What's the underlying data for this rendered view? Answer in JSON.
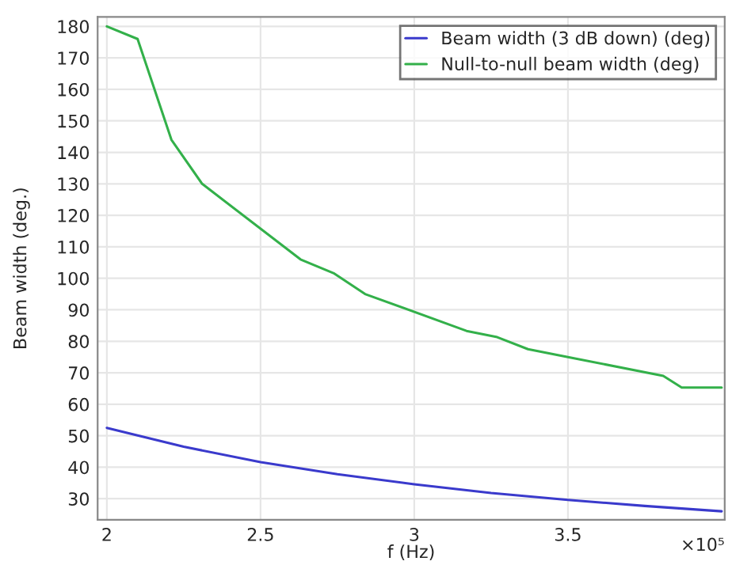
{
  "chart_data": {
    "type": "line",
    "xlabel": "f (Hz)",
    "ylabel": "Beam width (deg.)",
    "x": [
      2.0,
      2.25,
      2.5,
      2.75,
      3.0,
      3.25,
      3.5,
      3.75,
      4.0
    ],
    "series": [
      {
        "name": "Beam width (3 dB down) (deg)",
        "color": "#3a3acc",
        "values": [
          52.5,
          46.5,
          41.6,
          37.8,
          34.6,
          31.8,
          29.6,
          27.7,
          26
        ]
      },
      {
        "name": "Null-to-null beam width (deg)",
        "color": "#33b04a",
        "x": [
          2.0,
          2.1,
          2.21,
          2.31,
          2.63,
          2.74,
          2.84,
          3.17,
          3.27,
          3.37,
          3.5,
          3.81,
          3.87,
          4.0
        ],
        "values": [
          180,
          176,
          144,
          130,
          106,
          101.5,
          95,
          83.3,
          81.3,
          77.5,
          75,
          69,
          65.3,
          65.3
        ]
      }
    ],
    "xlim": [
      1.97,
      4.01
    ],
    "ylim": [
      23.3,
      183
    ],
    "xticks": [
      2,
      2.5,
      3,
      3.5
    ],
    "yticks": [
      30,
      40,
      50,
      60,
      70,
      80,
      90,
      100,
      110,
      120,
      130,
      140,
      150,
      160,
      170,
      180
    ],
    "annotations": [
      "×10⁵"
    ],
    "grid": true,
    "legend": "top right"
  }
}
